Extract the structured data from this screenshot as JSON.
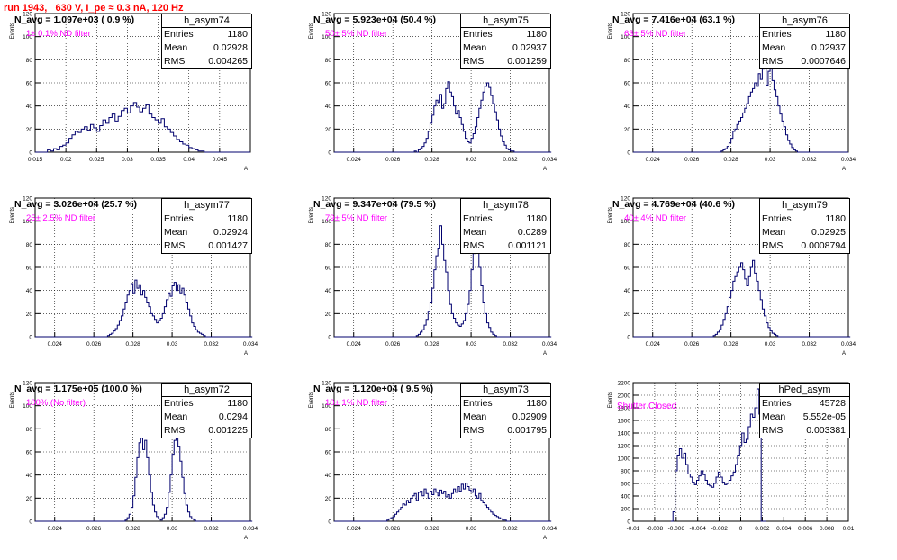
{
  "header": {
    "run_label": "run 1943,   630 V, I_pe ≈ 0.3 nA, 120 Hz"
  },
  "stat_labels": {
    "entries": "Entries",
    "mean": "Mean",
    "rms": "RMS"
  },
  "colors": {
    "histogram": "#00006e",
    "title": "#ff0000",
    "annotation": "#ff00ff",
    "grid": "#000000"
  },
  "chart_data": [
    {
      "type": "histogram",
      "name": "h_asym74",
      "n_avg": "N_avg = 1.097e+03 ( 0.9 %)",
      "note": "1± 0.1% ND filter",
      "entries": "1180",
      "mean": "0.02928",
      "rms": "0.004265",
      "ylabel": "Events",
      "xlabel": "A",
      "xlim": [
        0.015,
        0.05
      ],
      "ylim": [
        0,
        120
      ],
      "xticks": [
        0.015,
        0.02,
        0.025,
        0.03,
        0.035,
        0.04,
        0.045
      ],
      "xtick_labels": [
        "0.015",
        "0.02",
        "0.025",
        "0.03",
        "0.035",
        "0.04",
        "0.045"
      ],
      "yticks": [
        0,
        20,
        40,
        60,
        80,
        100,
        120
      ],
      "ytick_labels": [
        "0",
        "20",
        "40",
        "60",
        "80",
        "100",
        "120"
      ],
      "bins": {
        "start": 0.015,
        "width": 0.0005
      },
      "values": [
        0,
        0,
        0,
        0,
        2,
        1,
        3,
        2,
        5,
        6,
        8,
        12,
        15,
        18,
        17,
        20,
        22,
        19,
        24,
        21,
        18,
        23,
        28,
        25,
        30,
        33,
        27,
        31,
        36,
        38,
        34,
        40,
        43,
        39,
        35,
        38,
        41,
        33,
        30,
        28,
        25,
        29,
        22,
        20,
        17,
        14,
        11,
        9,
        7,
        6,
        4,
        3,
        2,
        1,
        1,
        0,
        0,
        0,
        0,
        0,
        0,
        0,
        0,
        0,
        0,
        0,
        0,
        0,
        0,
        0
      ]
    },
    {
      "type": "histogram",
      "name": "h_asym75",
      "n_avg": "N_avg = 5.923e+04 (50.4 %)",
      "note": "50± 5% ND filter",
      "entries": "1180",
      "mean": "0.02937",
      "rms": "0.001259",
      "ylabel": "Events",
      "xlabel": "A",
      "xlim": [
        0.023,
        0.034
      ],
      "ylim": [
        0,
        120
      ],
      "xticks": [
        0.024,
        0.026,
        0.028,
        0.03,
        0.032,
        0.034
      ],
      "xtick_labels": [
        "0.024",
        "0.026",
        "0.028",
        "0.03",
        "0.032",
        "0.034"
      ],
      "yticks": [
        0,
        20,
        40,
        60,
        80,
        100,
        120
      ],
      "ytick_labels": [
        "0",
        "20",
        "40",
        "60",
        "80",
        "100",
        "120"
      ],
      "bins": {
        "start": 0.023,
        "width": 0.0001
      },
      "values": [
        0,
        0,
        0,
        0,
        0,
        0,
        0,
        0,
        0,
        0,
        0,
        0,
        0,
        0,
        0,
        0,
        0,
        0,
        0,
        0,
        0,
        0,
        0,
        0,
        0,
        0,
        0,
        0,
        0,
        0,
        0,
        0,
        0,
        0,
        0,
        0,
        0,
        0,
        0,
        0,
        0,
        1,
        0,
        2,
        3,
        5,
        8,
        12,
        18,
        25,
        32,
        40,
        45,
        43,
        50,
        38,
        42,
        55,
        61,
        52,
        48,
        40,
        33,
        36,
        30,
        24,
        18,
        12,
        9,
        8,
        12,
        16,
        22,
        30,
        38,
        45,
        52,
        57,
        60,
        56,
        49,
        42,
        35,
        28,
        20,
        14,
        9,
        6,
        3,
        2,
        1,
        1,
        0,
        0,
        0,
        0,
        0,
        0,
        0,
        0,
        0,
        0,
        0,
        0,
        0,
        0,
        0,
        0,
        0,
        0,
        0
      ]
    },
    {
      "type": "histogram",
      "name": "h_asym76",
      "n_avg": "N_avg = 7.416e+04 (63.1 %)",
      "note": "63± 5% ND filter",
      "entries": "1180",
      "mean": "0.02937",
      "rms": "0.0007646",
      "ylabel": "Events",
      "xlabel": "A",
      "xlim": [
        0.023,
        0.034
      ],
      "ylim": [
        0,
        120
      ],
      "xticks": [
        0.024,
        0.026,
        0.028,
        0.03,
        0.032,
        0.034
      ],
      "xtick_labels": [
        "0.024",
        "0.026",
        "0.028",
        "0.03",
        "0.032",
        "0.034"
      ],
      "yticks": [
        0,
        20,
        40,
        60,
        80,
        100,
        120
      ],
      "ytick_labels": [
        "0",
        "20",
        "40",
        "60",
        "80",
        "100",
        "120"
      ],
      "bins": {
        "start": 0.023,
        "width": 0.0001
      },
      "values": [
        0,
        0,
        0,
        0,
        0,
        0,
        0,
        0,
        0,
        0,
        0,
        0,
        0,
        0,
        0,
        0,
        0,
        0,
        0,
        0,
        0,
        0,
        0,
        0,
        0,
        0,
        0,
        0,
        0,
        0,
        0,
        0,
        0,
        0,
        0,
        0,
        0,
        0,
        0,
        0,
        0,
        0,
        0,
        0,
        0,
        1,
        2,
        3,
        5,
        8,
        12,
        18,
        20,
        24,
        27,
        30,
        34,
        38,
        42,
        48,
        52,
        55,
        60,
        57,
        68,
        63,
        72,
        81,
        58,
        70,
        76,
        62,
        54,
        48,
        40,
        33,
        27,
        22,
        15,
        10,
        7,
        4,
        2,
        1,
        0,
        0,
        0,
        0,
        0,
        0,
        0,
        0,
        0,
        0,
        0,
        0,
        0,
        0,
        0,
        0,
        0,
        0,
        0,
        0,
        0,
        0,
        0,
        0,
        0,
        0
      ]
    },
    {
      "type": "histogram",
      "name": "h_asym77",
      "n_avg": "N_avg = 3.026e+04 (25.7 %)",
      "note": "25± 2.5% ND filter",
      "entries": "1180",
      "mean": "0.02924",
      "rms": "0.001427",
      "ylabel": "Events",
      "xlabel": "A",
      "xlim": [
        0.023,
        0.034
      ],
      "ylim": [
        0,
        120
      ],
      "xticks": [
        0.024,
        0.026,
        0.028,
        0.03,
        0.032,
        0.034
      ],
      "xtick_labels": [
        "0.024",
        "0.026",
        "0.028",
        "0.03",
        "0.032",
        "0.034"
      ],
      "yticks": [
        0,
        20,
        40,
        60,
        80,
        100,
        120
      ],
      "ytick_labels": [
        "0",
        "20",
        "40",
        "60",
        "80",
        "100",
        "120"
      ],
      "bins": {
        "start": 0.023,
        "width": 0.0001
      },
      "values": [
        0,
        0,
        0,
        0,
        0,
        0,
        0,
        0,
        0,
        0,
        0,
        0,
        0,
        0,
        0,
        0,
        0,
        0,
        0,
        0,
        0,
        0,
        0,
        0,
        0,
        0,
        0,
        0,
        0,
        0,
        0,
        0,
        0,
        0,
        0,
        0,
        0,
        1,
        2,
        3,
        5,
        7,
        10,
        14,
        18,
        24,
        30,
        36,
        40,
        46,
        38,
        49,
        42,
        45,
        36,
        40,
        34,
        30,
        26,
        20,
        18,
        15,
        12,
        14,
        16,
        20,
        26,
        32,
        38,
        35,
        44,
        47,
        40,
        45,
        38,
        42,
        36,
        30,
        24,
        18,
        12,
        9,
        6,
        4,
        3,
        2,
        1,
        0,
        0,
        0,
        0,
        0,
        0,
        0,
        0,
        0,
        0,
        0,
        0,
        0,
        0,
        0,
        0,
        0,
        0,
        0,
        0,
        0,
        0,
        0,
        0
      ]
    },
    {
      "type": "histogram",
      "name": "h_asym78",
      "n_avg": "N_avg = 9.347e+04 (79.5 %)",
      "note": "79± 5% ND filter",
      "entries": "1180",
      "mean": "0.0289",
      "rms": "0.001121",
      "ylabel": "Events",
      "xlabel": "A",
      "xlim": [
        0.023,
        0.034
      ],
      "ylim": [
        0,
        120
      ],
      "xticks": [
        0.024,
        0.026,
        0.028,
        0.03,
        0.032,
        0.034
      ],
      "xtick_labels": [
        "0.024",
        "0.026",
        "0.028",
        "0.03",
        "0.032",
        "0.034"
      ],
      "yticks": [
        0,
        20,
        40,
        60,
        80,
        100,
        120
      ],
      "ytick_labels": [
        "0",
        "20",
        "40",
        "60",
        "80",
        "100",
        "120"
      ],
      "bins": {
        "start": 0.023,
        "width": 0.0001
      },
      "values": [
        0,
        0,
        0,
        0,
        0,
        0,
        0,
        0,
        0,
        0,
        0,
        0,
        0,
        0,
        0,
        0,
        0,
        0,
        0,
        0,
        0,
        0,
        0,
        0,
        0,
        0,
        0,
        0,
        0,
        0,
        0,
        0,
        0,
        0,
        0,
        0,
        0,
        0,
        0,
        0,
        0,
        0,
        1,
        2,
        4,
        6,
        10,
        15,
        22,
        30,
        42,
        58,
        70,
        76,
        96,
        80,
        66,
        56,
        40,
        28,
        20,
        16,
        12,
        10,
        9,
        11,
        14,
        20,
        28,
        40,
        58,
        72,
        80,
        76,
        60,
        44,
        30,
        20,
        12,
        8,
        4,
        2,
        1,
        0,
        0,
        0,
        0,
        0,
        0,
        0,
        0,
        0,
        0,
        0,
        0,
        0,
        0,
        0,
        0,
        0,
        0,
        0,
        0,
        0,
        0,
        0,
        0,
        0,
        0,
        0,
        0
      ]
    },
    {
      "type": "histogram",
      "name": "h_asym79",
      "n_avg": "N_avg = 4.769e+04 (40.6 %)",
      "note": "40± 4% ND filter",
      "entries": "1180",
      "mean": "0.02925",
      "rms": "0.0008794",
      "ylabel": "Events",
      "xlabel": "A",
      "xlim": [
        0.023,
        0.034
      ],
      "ylim": [
        0,
        120
      ],
      "xticks": [
        0.024,
        0.026,
        0.028,
        0.03,
        0.032,
        0.034
      ],
      "xtick_labels": [
        "0.024",
        "0.026",
        "0.028",
        "0.03",
        "0.032",
        "0.034"
      ],
      "yticks": [
        0,
        20,
        40,
        60,
        80,
        100,
        120
      ],
      "ytick_labels": [
        "0",
        "20",
        "40",
        "60",
        "80",
        "100",
        "120"
      ],
      "bins": {
        "start": 0.023,
        "width": 0.0001
      },
      "values": [
        0,
        0,
        0,
        0,
        0,
        0,
        0,
        0,
        0,
        0,
        0,
        0,
        0,
        0,
        0,
        0,
        0,
        0,
        0,
        0,
        0,
        0,
        0,
        0,
        0,
        0,
        0,
        0,
        0,
        0,
        0,
        0,
        0,
        0,
        0,
        0,
        0,
        0,
        0,
        0,
        0,
        1,
        2,
        4,
        6,
        10,
        15,
        20,
        26,
        34,
        40,
        48,
        52,
        56,
        60,
        64,
        58,
        50,
        44,
        52,
        60,
        66,
        55,
        48,
        40,
        32,
        24,
        18,
        12,
        8,
        5,
        3,
        2,
        1,
        0,
        0,
        0,
        0,
        0,
        0,
        0,
        0,
        0,
        0,
        0,
        0,
        0,
        0,
        0,
        0,
        0,
        0,
        0,
        0,
        0,
        0,
        0,
        0,
        0,
        0,
        0,
        0,
        0,
        0,
        0,
        0,
        0,
        0,
        0,
        0,
        0
      ]
    },
    {
      "type": "histogram",
      "name": "h_asym72",
      "n_avg": "N_avg = 1.175e+05 (100.0 %)",
      "note": "100% (No filter)",
      "entries": "1180",
      "mean": "0.0294",
      "rms": "0.001225",
      "ylabel": "Events",
      "xlabel": "A",
      "xlim": [
        0.023,
        0.034
      ],
      "ylim": [
        0,
        120
      ],
      "xticks": [
        0.024,
        0.026,
        0.028,
        0.03,
        0.032,
        0.034
      ],
      "xtick_labels": [
        "0.024",
        "0.026",
        "0.028",
        "0.03",
        "0.032",
        "0.034"
      ],
      "yticks": [
        0,
        20,
        40,
        60,
        80,
        100,
        120
      ],
      "ytick_labels": [
        "0",
        "20",
        "40",
        "60",
        "80",
        "100",
        "120"
      ],
      "bins": {
        "start": 0.023,
        "width": 0.0001
      },
      "values": [
        0,
        0,
        0,
        0,
        0,
        0,
        0,
        0,
        0,
        0,
        0,
        0,
        0,
        0,
        0,
        0,
        0,
        0,
        0,
        0,
        0,
        0,
        0,
        0,
        0,
        0,
        0,
        0,
        0,
        0,
        0,
        0,
        0,
        0,
        0,
        0,
        0,
        0,
        0,
        0,
        0,
        0,
        0,
        0,
        0,
        0,
        1,
        3,
        6,
        12,
        22,
        38,
        55,
        68,
        72,
        62,
        70,
        55,
        40,
        25,
        14,
        8,
        4,
        2,
        1,
        3,
        6,
        12,
        25,
        40,
        58,
        70,
        72,
        65,
        52,
        38,
        24,
        14,
        8,
        4,
        2,
        1,
        0,
        0,
        0,
        0,
        0,
        0,
        0,
        0,
        0,
        0,
        0,
        0,
        0,
        0,
        0,
        0,
        0,
        0,
        0,
        0,
        0,
        0,
        0,
        0,
        0,
        0,
        0,
        0,
        0
      ]
    },
    {
      "type": "histogram",
      "name": "h_asym73",
      "n_avg": "N_avg = 1.120e+04 ( 9.5 %)",
      "note": "10± 1% ND filter",
      "entries": "1180",
      "mean": "0.02909",
      "rms": "0.001795",
      "ylabel": "Events",
      "xlabel": "A",
      "xlim": [
        0.023,
        0.034
      ],
      "ylim": [
        0,
        120
      ],
      "xticks": [
        0.024,
        0.026,
        0.028,
        0.03,
        0.032,
        0.034
      ],
      "xtick_labels": [
        "0.024",
        "0.026",
        "0.028",
        "0.03",
        "0.032",
        "0.034"
      ],
      "yticks": [
        0,
        20,
        40,
        60,
        80,
        100,
        120
      ],
      "ytick_labels": [
        "0",
        "20",
        "40",
        "60",
        "80",
        "100",
        "120"
      ],
      "bins": {
        "start": 0.023,
        "width": 0.0001
      },
      "values": [
        0,
        0,
        0,
        0,
        0,
        0,
        0,
        0,
        0,
        0,
        0,
        0,
        0,
        0,
        0,
        0,
        0,
        0,
        0,
        0,
        0,
        0,
        0,
        0,
        0,
        0,
        0,
        1,
        2,
        3,
        4,
        6,
        8,
        10,
        12,
        15,
        14,
        18,
        16,
        20,
        22,
        24,
        18,
        25,
        26,
        22,
        28,
        24,
        20,
        26,
        23,
        28,
        25,
        22,
        27,
        24,
        26,
        21,
        23,
        20,
        24,
        28,
        25,
        30,
        26,
        32,
        28,
        33,
        30,
        27,
        25,
        28,
        22,
        20,
        24,
        18,
        16,
        14,
        12,
        10,
        8,
        6,
        5,
        4,
        3,
        2,
        1,
        1,
        0,
        0,
        0,
        0,
        0,
        0,
        0,
        0,
        0,
        0,
        0,
        0,
        0,
        0,
        0,
        0,
        0,
        0,
        0,
        0,
        0,
        0,
        0
      ]
    },
    {
      "type": "histogram",
      "name": "hPed_asym",
      "n_avg": "",
      "note": "Shutter Closed",
      "entries": "45728",
      "mean": "5.552e-05",
      "rms": "0.003381",
      "ylabel": "Events",
      "xlabel": "",
      "xlim": [
        -0.01,
        0.01
      ],
      "ylim": [
        0,
        2200
      ],
      "xticks": [
        -0.01,
        -0.008,
        -0.006,
        -0.004,
        -0.002,
        0,
        0.002,
        0.004,
        0.006,
        0.008,
        0.01
      ],
      "xtick_labels": [
        "-0.01",
        "-0.008",
        "-0.006",
        "-0.004",
        "-0.002",
        "0",
        "0.002",
        "0.004",
        "0.006",
        "0.008",
        "0.01"
      ],
      "yticks": [
        0,
        200,
        400,
        600,
        800,
        1000,
        1200,
        1400,
        1600,
        1800,
        2000,
        2200
      ],
      "ytick_labels": [
        "0",
        "200",
        "400",
        "600",
        "800",
        "1000",
        "1200",
        "1400",
        "1600",
        "1800",
        "2000",
        "2200"
      ],
      "bins": {
        "start": -0.0065,
        "width": 0.0002
      },
      "values": [
        0,
        150,
        800,
        1050,
        1150,
        1000,
        1080,
        900,
        750,
        700,
        620,
        580,
        650,
        720,
        800,
        740,
        650,
        580,
        560,
        540,
        600,
        700,
        780,
        700,
        620,
        580,
        600,
        650,
        720,
        780,
        900,
        1050,
        1200,
        1400,
        1250,
        1300,
        1500,
        1700,
        1650,
        1800,
        2100,
        1700,
        0,
        0
      ]
    }
  ]
}
